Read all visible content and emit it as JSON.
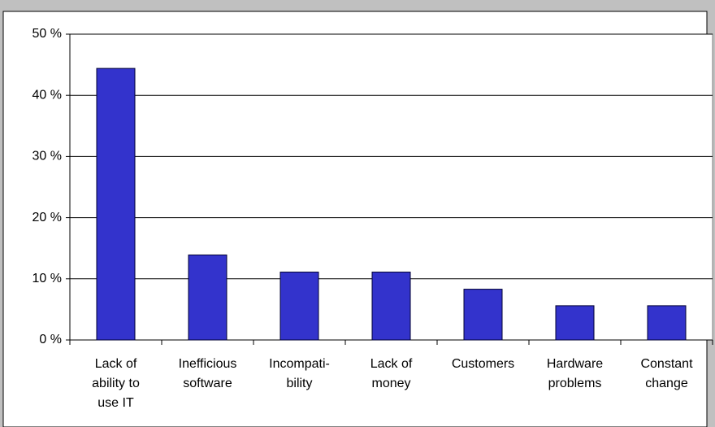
{
  "chart_data": {
    "type": "bar",
    "categories": [
      "Lack of\nability to\nuse IT",
      "Inefficious\nsoftware",
      "Incompati-\nbility",
      "Lack of\nmoney",
      "Customers",
      "Hardware\nproblems",
      "Constant\nchange"
    ],
    "values": [
      44.4,
      13.9,
      11.1,
      11.1,
      8.3,
      5.6,
      5.6
    ],
    "color": "#3333cc",
    "ylim": [
      0,
      50
    ],
    "yticks": [
      {
        "value": 0,
        "label": "0 %"
      },
      {
        "value": 10,
        "label": "10 %"
      },
      {
        "value": 20,
        "label": "20 %"
      },
      {
        "value": 30,
        "label": "30 %"
      },
      {
        "value": 40,
        "label": "40 %"
      },
      {
        "value": 50,
        "label": "50 %"
      }
    ],
    "grid": true
  }
}
